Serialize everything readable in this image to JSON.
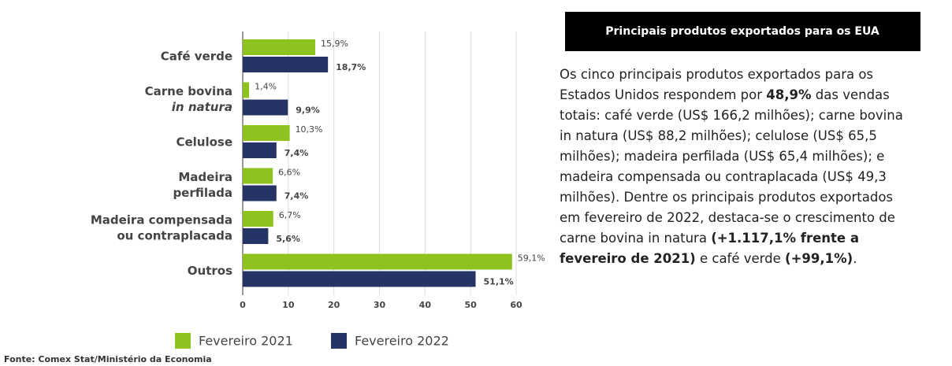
{
  "chart_data": {
    "type": "hbar",
    "categories": [
      [
        "Café verde"
      ],
      [
        "Carne bovina",
        {
          "text": "in natura",
          "italic": true
        }
      ],
      [
        "Celulose"
      ],
      [
        "Madeira",
        "perfilada"
      ],
      [
        "Madeira compensada",
        "ou contraplacada"
      ],
      [
        "Outros"
      ]
    ],
    "series": [
      {
        "name": "Fevereiro 2021",
        "color": "#8dc21f",
        "values": [
          15.9,
          1.4,
          10.3,
          6.6,
          6.7,
          59.1
        ],
        "value_labels": [
          "15,9%",
          "1,4%",
          "10,3%",
          "6,6%",
          "6,7%",
          "59,1%"
        ]
      },
      {
        "name": "Fevereiro 2022",
        "color": "#253465",
        "values": [
          18.7,
          9.9,
          7.4,
          7.4,
          5.6,
          51.1
        ],
        "value_labels": [
          "18,7%",
          "9,9%",
          "7,4%",
          "7,4%",
          "5,6%",
          "51,1%"
        ]
      }
    ],
    "xlim": [
      0,
      60
    ],
    "xticks": [
      0,
      10,
      20,
      30,
      40,
      50,
      60
    ],
    "grid": true
  },
  "panel": {
    "title": "Principais produtos exportados para os EUA",
    "paragraph": [
      {
        "text": "Os cinco principais produtos exportados para os Estados Unidos respondem por ",
        "bold": false
      },
      {
        "text": "48,9%",
        "bold": true
      },
      {
        "text": " das vendas totais: café verde (US$ 166,2 milhões); carne bovina in natura (US$ 88,2 milhões); celulose (US$ 65,5 milhões); madeira perfilada (US$ 65,4 milhões); e madeira compensada ou contraplacada (US$ 49,3 milhões). Dentre os principais produtos exportados em fevereiro de 2022, destaca-se o crescimento de carne bovina in natura ",
        "bold": false
      },
      {
        "text": "(+1.117,1% frente a fevereiro de 2021)",
        "bold": true
      },
      {
        "text": " e café verde ",
        "bold": false
      },
      {
        "text": "(+99,1%)",
        "bold": true
      },
      {
        "text": ".",
        "bold": false
      }
    ]
  },
  "source": "Fonte: Comex Stat/Ministério da Economia"
}
